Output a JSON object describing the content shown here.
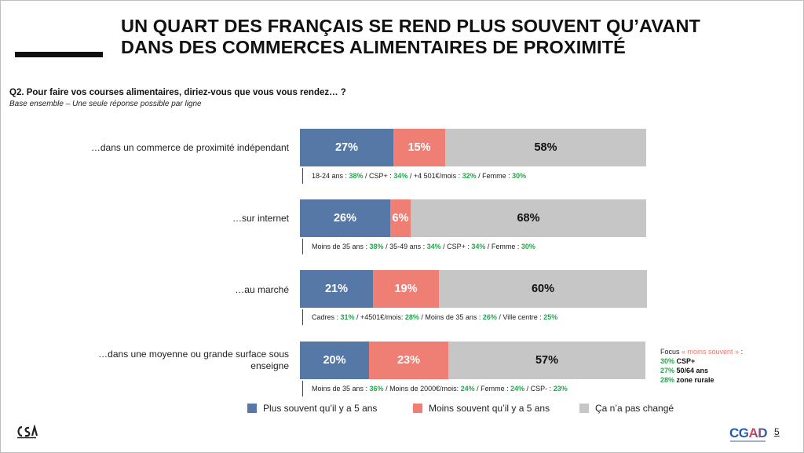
{
  "title": {
    "line1": "UN QUART DES FRANÇAIS SE REND PLUS SOUVENT QU’AVANT",
    "line2": "DANS DES COMMERCES ALIMENTAIRES DE PROXIMITÉ"
  },
  "question": "Q2. Pour faire vos courses alimentaires, diriez-vous que vous vous rendez… ?",
  "base": "Base ensemble – Une seule réponse possible par ligne",
  "colors": {
    "s0": "#5678a6",
    "s1": "#ef7f74",
    "s2": "#c6c6c6"
  },
  "chart_data": {
    "type": "bar",
    "stacked": true,
    "orientation": "horizontal",
    "unit": "%",
    "categories": [
      "…dans un commerce de proximité indépendant",
      "…sur internet",
      "…au marché",
      "…dans une moyenne ou grande surface sous enseigne"
    ],
    "series": [
      {
        "name": "Plus souvent qu’il y a 5 ans",
        "values": [
          27,
          26,
          21,
          20
        ],
        "labels": [
          "27%",
          "26%",
          "21%",
          "20%"
        ]
      },
      {
        "name": "Moins souvent qu’il y a 5 ans",
        "values": [
          15,
          6,
          19,
          23
        ],
        "labels": [
          "15%",
          "6%",
          "19%",
          "23%"
        ]
      },
      {
        "name": "Ça n’a pas changé",
        "values": [
          58,
          68,
          60,
          57
        ],
        "labels": [
          "58%",
          "68%",
          "60%",
          "57%"
        ]
      }
    ],
    "legend": "bottom"
  },
  "notes": [
    [
      [
        "18-24 ans : ",
        "38%"
      ],
      [
        " / CSP+ : ",
        "34%"
      ],
      [
        " / +4 501€/mois : ",
        "32%"
      ],
      [
        " / Femme : ",
        "30%"
      ]
    ],
    [
      [
        "Moins de 35 ans : ",
        "38%"
      ],
      [
        " / 35-49 ans : ",
        "34%"
      ],
      [
        " / CSP+ : ",
        "34%"
      ],
      [
        " / Femme : ",
        "30%"
      ]
    ],
    [
      [
        "Cadres : ",
        "31%"
      ],
      [
        " / +4501€/mois: ",
        "28%"
      ],
      [
        " / Moins de 35 ans : ",
        "26%"
      ],
      [
        " / Ville centre : ",
        "25%"
      ]
    ],
    [
      [
        "Moins de 35 ans : ",
        "36%"
      ],
      [
        " / Moins de 2000€/mois: ",
        "24%"
      ],
      [
        " / Femme : ",
        "24%"
      ],
      [
        " / CSP- : ",
        "23%"
      ]
    ]
  ],
  "focus": {
    "head_start": "Focus ",
    "head_highlight": "« moins souvent »",
    "head_end": " :",
    "lines": [
      {
        "value": "30%",
        "text": " CSP+"
      },
      {
        "value": "27%",
        "text": " 50/64 ans"
      },
      {
        "value": "28%",
        "text": " zone rurale"
      }
    ]
  },
  "logos": {
    "brand": "CGAD"
  },
  "page_number": "5"
}
